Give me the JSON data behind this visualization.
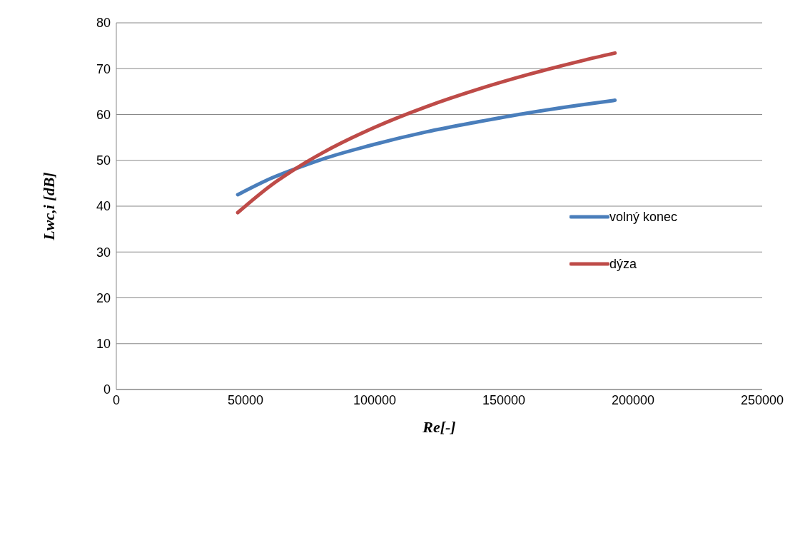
{
  "chart_data": {
    "type": "line",
    "xlabel": "Re[-]",
    "ylabel": "Lwc,i [dB]",
    "xlim": [
      0,
      250000
    ],
    "xticks": [
      0,
      50000,
      100000,
      150000,
      200000,
      250000
    ],
    "ylim": [
      0,
      80
    ],
    "yticks": [
      0,
      10,
      20,
      30,
      40,
      50,
      60,
      70,
      80
    ],
    "grid": "y",
    "legend": "right",
    "marker": "none",
    "line_style": "solid",
    "x": [
      47000,
      60000,
      70000,
      80000,
      100000,
      120000,
      140000,
      160000,
      180000,
      193000
    ],
    "series": [
      {
        "name": "volný konec",
        "color": "#4a7ebb",
        "values": [
          42.5,
          46.1,
          48.3,
          50.3,
          53.5,
          56.2,
          58.4,
          60.4,
          62.1,
          63.1
        ]
      },
      {
        "name": "dýza",
        "color": "#be4b48",
        "values": [
          38.6,
          44.6,
          48.4,
          51.7,
          57.2,
          61.7,
          65.5,
          68.8,
          71.7,
          73.4
        ]
      }
    ]
  }
}
